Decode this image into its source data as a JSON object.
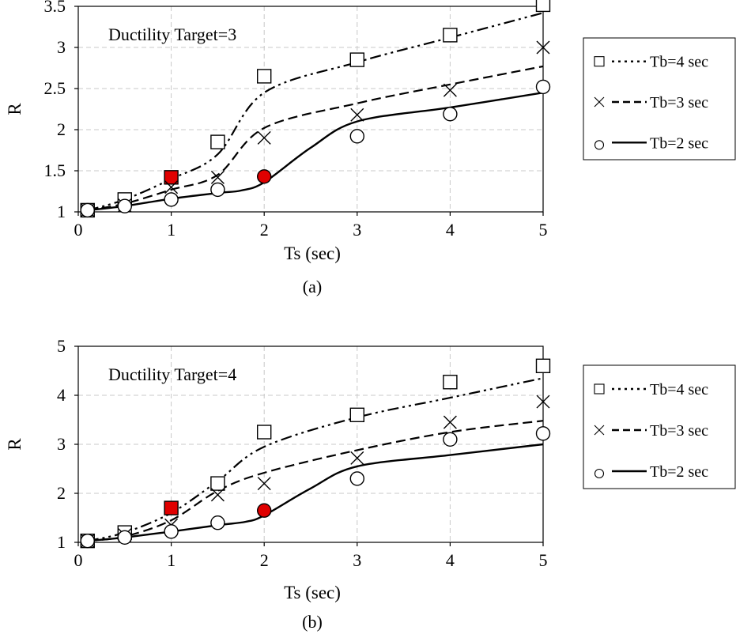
{
  "chart_data": [
    {
      "type": "scatter",
      "panel_label": "(a)",
      "annotation": "Ductility Target=3",
      "xlabel": "Ts (sec)",
      "ylabel": "R",
      "xlim": [
        0,
        5
      ],
      "ylim": [
        1,
        3.5
      ],
      "xticks": [
        "0",
        "1",
        "2",
        "3",
        "4",
        "5"
      ],
      "yticks": [
        "1",
        "1.5",
        "2",
        "2.5",
        "3",
        "3.5"
      ],
      "grid": true,
      "legend_position": "right",
      "highlight_color": "#e00000",
      "series": [
        {
          "name": "Tb=4 sec",
          "marker": "square",
          "line_style": "dash-dot-dot",
          "points": [
            [
              0.1,
              1.02
            ],
            [
              0.5,
              1.15
            ],
            [
              1,
              1.42
            ],
            [
              1.5,
              1.85
            ],
            [
              2,
              2.65
            ],
            [
              3,
              2.85
            ],
            [
              4,
              3.15
            ],
            [
              5,
              3.52
            ]
          ],
          "highlighted_x": [
            1
          ],
          "fit": [
            [
              0.1,
              1.02
            ],
            [
              0.5,
              1.15
            ],
            [
              1,
              1.4
            ],
            [
              1.5,
              1.7
            ],
            [
              2,
              2.45
            ],
            [
              3,
              2.82
            ],
            [
              4,
              3.12
            ],
            [
              5,
              3.42
            ]
          ]
        },
        {
          "name": "Tb=3 sec",
          "marker": "x",
          "line_style": "dashed",
          "points": [
            [
              0.1,
              1.02
            ],
            [
              0.5,
              1.08
            ],
            [
              1,
              1.3
            ],
            [
              1.5,
              1.42
            ],
            [
              2,
              1.9
            ],
            [
              3,
              2.18
            ],
            [
              4,
              2.48
            ],
            [
              5,
              3.0
            ]
          ],
          "highlighted_x": [],
          "fit": [
            [
              0.1,
              1.02
            ],
            [
              0.5,
              1.1
            ],
            [
              1,
              1.27
            ],
            [
              1.5,
              1.45
            ],
            [
              2,
              2.02
            ],
            [
              3,
              2.32
            ],
            [
              4,
              2.55
            ],
            [
              5,
              2.77
            ]
          ]
        },
        {
          "name": "Tb=2 sec",
          "marker": "circle",
          "line_style": "solid",
          "points": [
            [
              0.1,
              1.02
            ],
            [
              0.5,
              1.07
            ],
            [
              1,
              1.15
            ],
            [
              1.5,
              1.27
            ],
            [
              2,
              1.43
            ],
            [
              3,
              1.92
            ],
            [
              4,
              2.19
            ],
            [
              5,
              2.52
            ]
          ],
          "highlighted_x": [
            2
          ],
          "fit": [
            [
              0.1,
              1.02
            ],
            [
              0.5,
              1.07
            ],
            [
              1,
              1.16
            ],
            [
              1.5,
              1.23
            ],
            [
              1.75,
              1.26
            ],
            [
              2,
              1.36
            ],
            [
              2.5,
              1.78
            ],
            [
              3,
              2.1
            ],
            [
              4,
              2.27
            ],
            [
              5,
              2.45
            ]
          ]
        }
      ]
    },
    {
      "type": "scatter",
      "panel_label": "(b)",
      "annotation": "Ductility Target=4",
      "xlabel": "Ts (sec)",
      "ylabel": "R",
      "xlim": [
        0,
        5
      ],
      "ylim": [
        1,
        5
      ],
      "xticks": [
        "0",
        "1",
        "2",
        "3",
        "4",
        "5"
      ],
      "yticks": [
        "1",
        "2",
        "3",
        "4",
        "5"
      ],
      "grid": true,
      "legend_position": "right",
      "highlight_color": "#e00000",
      "series": [
        {
          "name": "Tb=4 sec",
          "marker": "square",
          "line_style": "dash-dot-dot",
          "points": [
            [
              0.1,
              1.03
            ],
            [
              0.5,
              1.2
            ],
            [
              1,
              1.7
            ],
            [
              1.5,
              2.2
            ],
            [
              2,
              3.25
            ],
            [
              3,
              3.6
            ],
            [
              4,
              4.27
            ],
            [
              5,
              4.6
            ]
          ],
          "highlighted_x": [
            1
          ],
          "fit": [
            [
              0.1,
              1.03
            ],
            [
              0.5,
              1.2
            ],
            [
              1,
              1.6
            ],
            [
              1.5,
              2.25
            ],
            [
              2,
              2.95
            ],
            [
              3,
              3.55
            ],
            [
              4,
              3.95
            ],
            [
              5,
              4.35
            ]
          ]
        },
        {
          "name": "Tb=3 sec",
          "marker": "x",
          "line_style": "dashed",
          "points": [
            [
              0.1,
              1.03
            ],
            [
              0.5,
              1.15
            ],
            [
              1,
              1.35
            ],
            [
              1.5,
              1.97
            ],
            [
              2,
              2.2
            ],
            [
              3,
              2.72
            ],
            [
              4,
              3.45
            ],
            [
              5,
              3.87
            ]
          ],
          "highlighted_x": [],
          "fit": [
            [
              0.1,
              1.03
            ],
            [
              0.5,
              1.12
            ],
            [
              1,
              1.45
            ],
            [
              1.5,
              2.05
            ],
            [
              2,
              2.42
            ],
            [
              3,
              2.88
            ],
            [
              4,
              3.25
            ],
            [
              5,
              3.48
            ]
          ]
        },
        {
          "name": "Tb=2 sec",
          "marker": "circle",
          "line_style": "solid",
          "points": [
            [
              0.1,
              1.03
            ],
            [
              0.5,
              1.1
            ],
            [
              1,
              1.22
            ],
            [
              1.5,
              1.4
            ],
            [
              2,
              1.65
            ],
            [
              3,
              2.3
            ],
            [
              4,
              3.1
            ],
            [
              5,
              3.22
            ]
          ],
          "highlighted_x": [
            2
          ],
          "fit": [
            [
              0.1,
              1.03
            ],
            [
              0.5,
              1.1
            ],
            [
              1,
              1.22
            ],
            [
              1.5,
              1.35
            ],
            [
              1.8,
              1.42
            ],
            [
              2,
              1.55
            ],
            [
              2.5,
              2.1
            ],
            [
              3,
              2.55
            ],
            [
              4,
              2.78
            ],
            [
              5,
              3.0
            ]
          ]
        }
      ]
    }
  ]
}
